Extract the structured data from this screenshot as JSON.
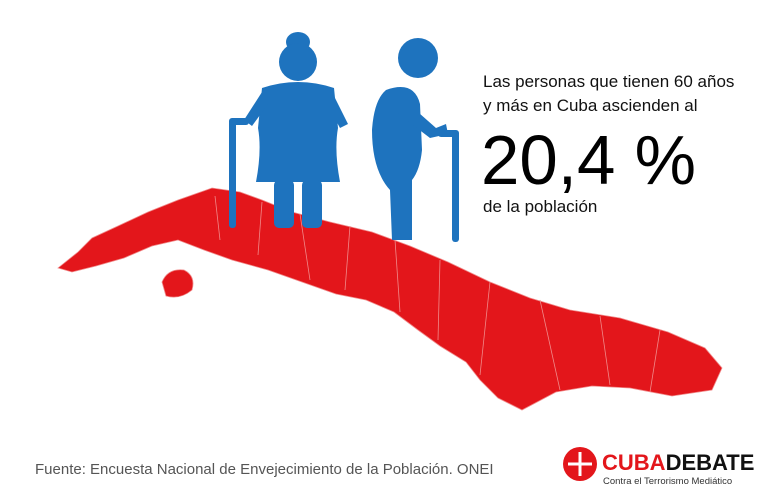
{
  "headline": {
    "line1": "Las personas que tienen 60 años",
    "line2": "y más en Cuba ascienden al",
    "figure": "20,4 %",
    "line3": "de la población"
  },
  "source": "Fuente: Encuesta Nacional de Envejecimiento de la Población. ONEI",
  "logo": {
    "name_part1": "CUBA",
    "name_part2": "DEBATE",
    "tagline": "Contra el Terrorismo Mediático"
  }
}
